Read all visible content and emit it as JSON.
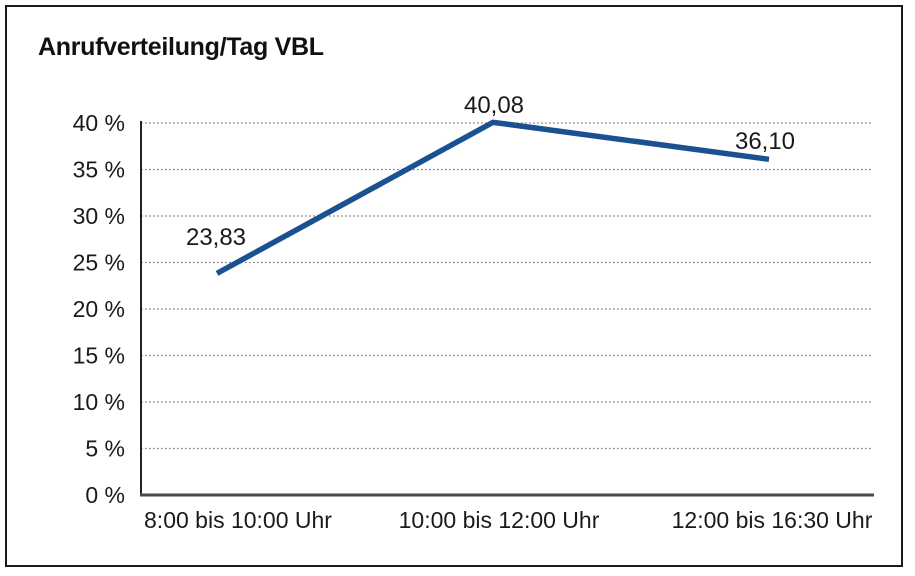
{
  "chart_data": {
    "type": "line",
    "title": "Anrufverteilung/Tag VBL",
    "categories": [
      "8:00 bis 10:00 Uhr",
      "10:00 bis 12:00 Uhr",
      "12:00 bis 16:30 Uhr"
    ],
    "series": [
      {
        "values": [
          23.83,
          40.08,
          36.1
        ]
      }
    ],
    "data_labels": [
      "23,83",
      "40,08",
      "36,10"
    ],
    "y_ticks": [
      "0 %",
      "5 %",
      "10 %",
      "15 %",
      "20 %",
      "25 %",
      "30 %",
      "35 %",
      "40 %"
    ],
    "y_tick_values": [
      0,
      5,
      10,
      15,
      20,
      25,
      30,
      35,
      40
    ],
    "ylim": [
      0,
      40
    ],
    "xlabel": "",
    "ylabel": "",
    "legend": "none",
    "grid": "horizontal-dotted",
    "colors": {
      "line": "#1A5291",
      "axis": "#222222",
      "baseline": "#4a4a4a",
      "gridline": "#7d7d7d",
      "text": "#1a1a1a",
      "frame": "#1a1a1a"
    }
  }
}
